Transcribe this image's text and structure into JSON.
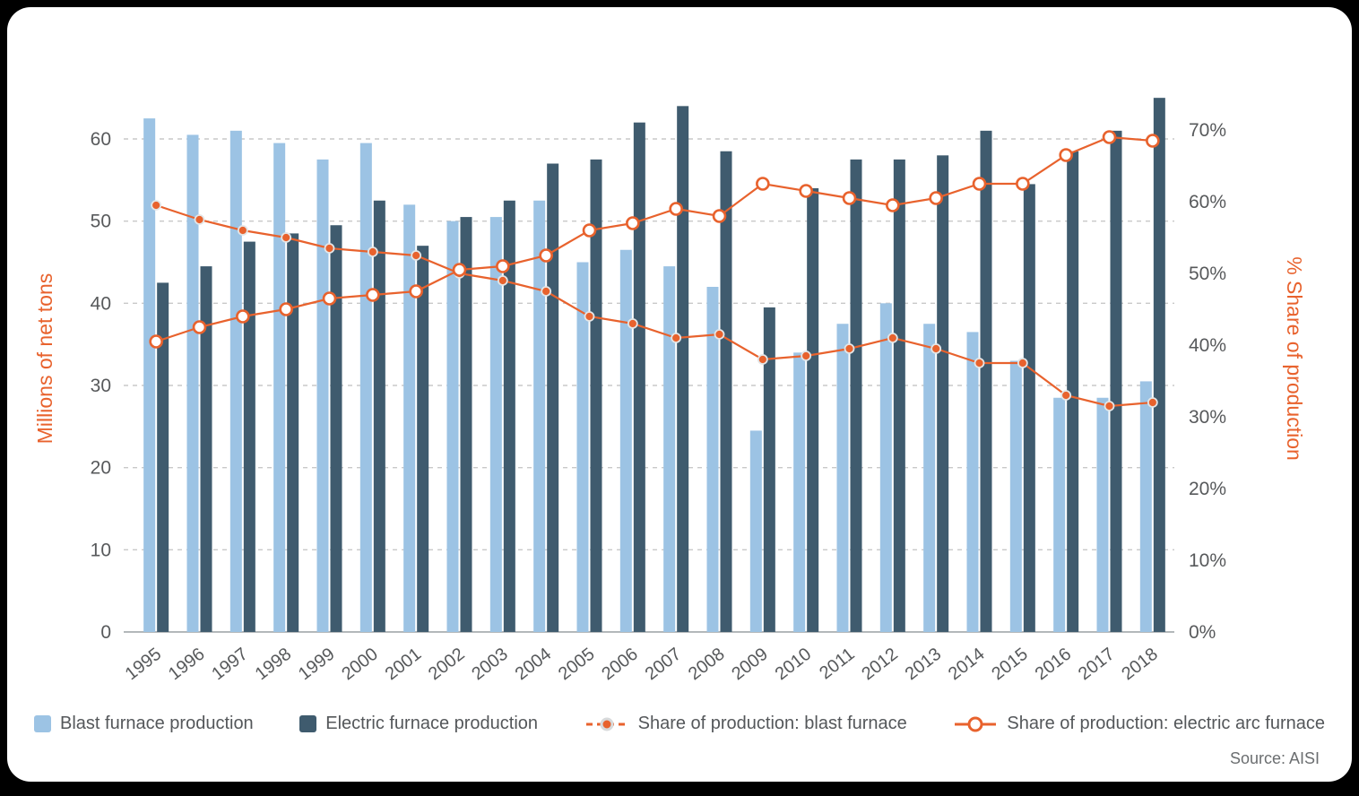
{
  "colors": {
    "page_background": "#000000",
    "panel_background": "#ffffff",
    "bar_blast": "#9CC3E4",
    "bar_electric": "#3F5B6E",
    "line_orange": "#E8622D",
    "axis_title_text": "#E8622D",
    "tick_text": "#57595B",
    "gridline": "#C8C8C8",
    "legend_text": "#54575A",
    "source_text": "#6B6E70"
  },
  "chart_data": {
    "type": "bar",
    "subtype": "grouped-bar-with-dual-axis-lines",
    "categories": [
      "1995",
      "1996",
      "1997",
      "1998",
      "1999",
      "2000",
      "2001",
      "2002",
      "2003",
      "2004",
      "2005",
      "2006",
      "2007",
      "2008",
      "2009",
      "2010",
      "2011",
      "2012",
      "2013",
      "2014",
      "2015",
      "2016",
      "2017",
      "2018"
    ],
    "series": [
      {
        "name": "Blast furnace production",
        "type": "bar",
        "axis": "left",
        "color": "#9CC3E4",
        "values": [
          62.5,
          60.5,
          61,
          59.5,
          57.5,
          59.5,
          52,
          50,
          50.5,
          52.5,
          45,
          46.5,
          44.5,
          42,
          24.5,
          34,
          37.5,
          40,
          37.5,
          36.5,
          33,
          28.5,
          28.5,
          30.5
        ]
      },
      {
        "name": "Electric furnace production",
        "type": "bar",
        "axis": "left",
        "color": "#3F5B6E",
        "values": [
          42.5,
          44.5,
          47.5,
          48.5,
          49.5,
          52.5,
          47,
          50.5,
          52.5,
          57,
          57.5,
          62,
          64,
          58.5,
          39.5,
          54,
          57.5,
          57.5,
          58,
          61,
          54.5,
          58.5,
          61,
          65
        ]
      },
      {
        "name": "Share of production: blast furnace",
        "type": "line",
        "axis": "right",
        "marker": "filled",
        "color": "#E8622D",
        "values": [
          59.5,
          57.5,
          56,
          55,
          53.5,
          53,
          52.5,
          50,
          49,
          47.5,
          44,
          43,
          41,
          41.5,
          38,
          38.5,
          39.5,
          41,
          39.5,
          37.5,
          37.5,
          33,
          31.5,
          32
        ]
      },
      {
        "name": "Share of production: electric arc furnace",
        "type": "line",
        "axis": "right",
        "marker": "open",
        "color": "#E8622D",
        "values": [
          40.5,
          42.5,
          44,
          45,
          46.5,
          47,
          47.5,
          50.5,
          51,
          52.5,
          56,
          57,
          59,
          58,
          62.5,
          61.5,
          60.5,
          59.5,
          60.5,
          62.5,
          62.5,
          66.5,
          69,
          68.5
        ]
      }
    ],
    "left_axis": {
      "title": "Millions of net tons",
      "tick_values": [
        0,
        10,
        20,
        30,
        40,
        50,
        60
      ],
      "tick_labels": [
        "0",
        "10",
        "20",
        "30",
        "40",
        "50",
        "60"
      ],
      "max_visible": 66
    },
    "right_axis": {
      "title": "% Share of production",
      "tick_values": [
        0,
        10,
        20,
        30,
        40,
        50,
        60,
        70
      ],
      "tick_labels": [
        "0%",
        "10%",
        "20%",
        "30%",
        "40%",
        "50%",
        "60%",
        "70%"
      ],
      "max_visible": 75
    },
    "grid": "horizontal-dashed",
    "legend_position": "bottom",
    "source": "Source: AISI"
  }
}
